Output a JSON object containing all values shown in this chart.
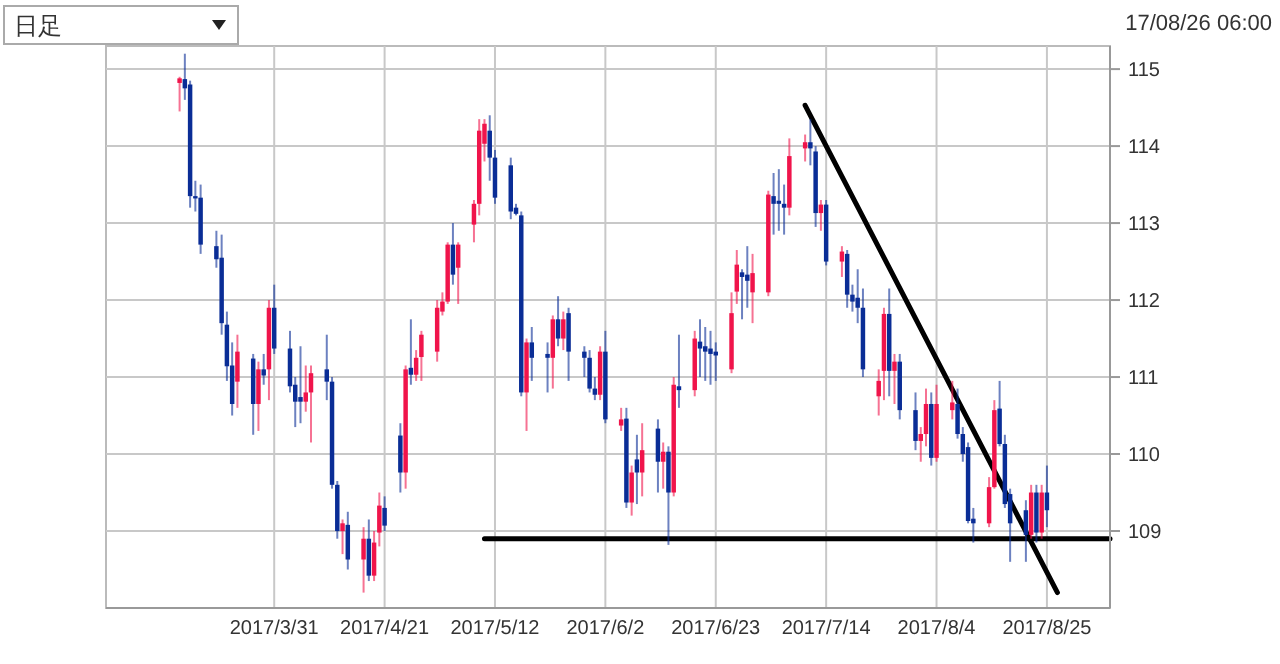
{
  "chart_data": {
    "type": "candlestick",
    "annotations": [
      "日足",
      "17/08/26 06:00"
    ],
    "x": [
      "2017-03-13",
      "2017-03-14",
      "2017-03-15",
      "2017-03-16",
      "2017-03-17",
      "2017-03-20",
      "2017-03-21",
      "2017-03-22",
      "2017-03-23",
      "2017-03-24",
      "2017-03-27",
      "2017-03-28",
      "2017-03-29",
      "2017-03-30",
      "2017-03-31",
      "2017-04-03",
      "2017-04-04",
      "2017-04-05",
      "2017-04-06",
      "2017-04-07",
      "2017-04-10",
      "2017-04-11",
      "2017-04-12",
      "2017-04-13",
      "2017-04-14",
      "2017-04-17",
      "2017-04-18",
      "2017-04-19",
      "2017-04-20",
      "2017-04-21",
      "2017-04-24",
      "2017-04-25",
      "2017-04-26",
      "2017-04-27",
      "2017-04-28",
      "2017-05-01",
      "2017-05-02",
      "2017-05-03",
      "2017-05-04",
      "2017-05-05",
      "2017-05-08",
      "2017-05-09",
      "2017-05-10",
      "2017-05-11",
      "2017-05-12",
      "2017-05-15",
      "2017-05-16",
      "2017-05-17",
      "2017-05-18",
      "2017-05-19",
      "2017-05-22",
      "2017-05-23",
      "2017-05-24",
      "2017-05-25",
      "2017-05-26",
      "2017-05-29",
      "2017-05-30",
      "2017-05-31",
      "2017-06-01",
      "2017-06-02",
      "2017-06-05",
      "2017-06-06",
      "2017-06-07",
      "2017-06-08",
      "2017-06-09",
      "2017-06-12",
      "2017-06-13",
      "2017-06-14",
      "2017-06-15",
      "2017-06-16",
      "2017-06-19",
      "2017-06-20",
      "2017-06-21",
      "2017-06-22",
      "2017-06-23",
      "2017-06-26",
      "2017-06-27",
      "2017-06-28",
      "2017-06-29",
      "2017-06-30",
      "2017-07-03",
      "2017-07-04",
      "2017-07-05",
      "2017-07-06",
      "2017-07-07",
      "2017-07-10",
      "2017-07-11",
      "2017-07-12",
      "2017-07-13",
      "2017-07-14",
      "2017-07-17",
      "2017-07-18",
      "2017-07-19",
      "2017-07-20",
      "2017-07-21",
      "2017-07-24",
      "2017-07-25",
      "2017-07-26",
      "2017-07-27",
      "2017-07-28",
      "2017-07-31",
      "2017-08-01",
      "2017-08-02",
      "2017-08-03",
      "2017-08-04",
      "2017-08-07",
      "2017-08-08",
      "2017-08-09",
      "2017-08-10",
      "2017-08-11",
      "2017-08-14",
      "2017-08-15",
      "2017-08-16",
      "2017-08-17",
      "2017-08-18",
      "2017-08-21",
      "2017-08-22",
      "2017-08-23",
      "2017-08-24",
      "2017-08-25"
    ],
    "ohlc": [
      [
        114.82,
        114.9,
        114.45,
        114.88
      ],
      [
        114.87,
        115.2,
        114.6,
        114.75
      ],
      [
        114.8,
        114.85,
        113.2,
        113.35
      ],
      [
        113.35,
        113.55,
        113.15,
        113.32
      ],
      [
        113.33,
        113.5,
        112.6,
        112.72
      ],
      [
        112.7,
        112.9,
        112.42,
        112.53
      ],
      [
        112.55,
        112.85,
        111.55,
        111.7
      ],
      [
        111.68,
        111.85,
        110.95,
        111.14
      ],
      [
        111.15,
        111.45,
        110.5,
        110.65
      ],
      [
        110.94,
        111.55,
        110.6,
        111.33
      ],
      [
        111.24,
        111.3,
        110.25,
        110.65
      ],
      [
        110.65,
        111.2,
        110.3,
        111.1
      ],
      [
        111.1,
        111.3,
        110.9,
        111.02
      ],
      [
        111.1,
        112.0,
        110.7,
        111.9
      ],
      [
        111.9,
        112.2,
        111.3,
        111.37
      ],
      [
        111.37,
        111.6,
        110.8,
        110.88
      ],
      [
        110.9,
        111.0,
        110.35,
        110.68
      ],
      [
        110.74,
        111.4,
        110.4,
        110.68
      ],
      [
        110.68,
        111.15,
        110.55,
        110.8
      ],
      [
        110.8,
        111.15,
        110.15,
        111.05
      ],
      [
        111.1,
        111.55,
        110.7,
        110.94
      ],
      [
        110.94,
        111.0,
        109.55,
        109.6
      ],
      [
        109.6,
        109.65,
        108.9,
        109.0
      ],
      [
        109.0,
        109.15,
        108.7,
        109.1
      ],
      [
        109.08,
        109.25,
        108.5,
        108.63
      ],
      [
        108.63,
        109.05,
        108.2,
        108.9
      ],
      [
        108.9,
        109.15,
        108.35,
        108.42
      ],
      [
        108.42,
        109.0,
        108.35,
        108.85
      ],
      [
        108.98,
        109.5,
        108.8,
        109.33
      ],
      [
        109.3,
        109.45,
        109.0,
        109.07
      ],
      [
        110.24,
        110.4,
        109.5,
        109.76
      ],
      [
        109.76,
        111.15,
        109.55,
        111.1
      ],
      [
        111.12,
        111.75,
        110.9,
        111.03
      ],
      [
        111.03,
        111.35,
        110.95,
        111.25
      ],
      [
        111.26,
        111.6,
        110.95,
        111.55
      ],
      [
        111.33,
        112.0,
        111.2,
        111.9
      ],
      [
        111.85,
        112.1,
        111.8,
        111.98
      ],
      [
        111.98,
        112.75,
        111.95,
        112.72
      ],
      [
        112.72,
        113.0,
        112.2,
        112.33
      ],
      [
        112.42,
        112.75,
        111.95,
        112.72
      ],
      [
        112.98,
        113.3,
        112.75,
        113.25
      ],
      [
        113.25,
        114.35,
        113.1,
        114.2
      ],
      [
        114.03,
        114.35,
        113.8,
        114.29
      ],
      [
        114.2,
        114.4,
        113.55,
        113.85
      ],
      [
        113.85,
        113.95,
        113.25,
        113.33
      ],
      [
        113.75,
        113.85,
        113.05,
        113.15
      ],
      [
        113.2,
        113.25,
        113.1,
        113.12
      ],
      [
        113.1,
        113.15,
        110.75,
        110.8
      ],
      [
        110.8,
        111.5,
        110.3,
        111.45
      ],
      [
        111.45,
        111.65,
        110.95,
        111.25
      ],
      [
        111.3,
        111.45,
        110.8,
        111.25
      ],
      [
        111.25,
        111.8,
        110.85,
        111.75
      ],
      [
        111.75,
        112.05,
        111.4,
        111.5
      ],
      [
        111.5,
        111.85,
        111.35,
        111.75
      ],
      [
        111.83,
        111.9,
        110.95,
        111.33
      ],
      [
        111.33,
        111.4,
        111.0,
        111.25
      ],
      [
        111.25,
        111.35,
        110.8,
        110.85
      ],
      [
        110.85,
        111.0,
        110.7,
        110.77
      ],
      [
        110.77,
        111.4,
        110.7,
        111.33
      ],
      [
        111.33,
        111.6,
        110.4,
        110.45
      ],
      [
        110.37,
        110.6,
        110.3,
        110.45
      ],
      [
        110.46,
        110.6,
        109.3,
        109.37
      ],
      [
        109.37,
        109.85,
        109.2,
        109.76
      ],
      [
        109.93,
        110.25,
        109.35,
        109.76
      ],
      [
        109.76,
        110.4,
        109.45,
        110.05
      ],
      [
        110.33,
        110.45,
        109.5,
        109.9
      ],
      [
        109.9,
        110.15,
        109.55,
        110.03
      ],
      [
        110.03,
        110.1,
        108.82,
        109.5
      ],
      [
        109.5,
        111.0,
        109.45,
        110.9
      ],
      [
        110.88,
        111.55,
        110.6,
        110.83
      ],
      [
        110.83,
        111.6,
        110.75,
        111.5
      ],
      [
        111.46,
        111.75,
        111.0,
        111.37
      ],
      [
        111.4,
        111.65,
        110.95,
        111.33
      ],
      [
        111.37,
        111.6,
        110.9,
        111.3
      ],
      [
        111.33,
        111.45,
        110.95,
        111.28
      ],
      [
        111.1,
        112.1,
        111.05,
        111.83
      ],
      [
        112.11,
        112.65,
        111.95,
        112.46
      ],
      [
        112.36,
        112.4,
        111.75,
        112.3
      ],
      [
        112.33,
        112.7,
        111.9,
        112.25
      ],
      [
        112.1,
        112.6,
        111.7,
        112.35
      ],
      [
        112.1,
        113.42,
        112.05,
        113.37
      ],
      [
        113.35,
        113.65,
        112.85,
        113.25
      ],
      [
        113.29,
        113.7,
        112.9,
        113.25
      ],
      [
        113.25,
        113.5,
        112.85,
        113.2
      ],
      [
        113.2,
        114.1,
        113.1,
        113.87
      ],
      [
        113.97,
        114.15,
        113.8,
        114.05
      ],
      [
        114.05,
        114.35,
        113.75,
        113.97
      ],
      [
        113.93,
        114.0,
        112.95,
        113.13
      ],
      [
        113.13,
        113.3,
        112.9,
        113.24
      ],
      [
        113.24,
        113.3,
        112.45,
        112.5
      ],
      [
        112.5,
        112.7,
        112.3,
        112.63
      ],
      [
        112.6,
        112.65,
        111.9,
        112.07
      ],
      [
        112.07,
        112.2,
        111.85,
        111.98
      ],
      [
        112.03,
        112.4,
        111.7,
        111.9
      ],
      [
        111.9,
        112.15,
        111.0,
        111.1
      ],
      [
        110.75,
        111.1,
        110.5,
        110.95
      ],
      [
        111.08,
        111.9,
        110.7,
        111.82
      ],
      [
        111.82,
        112.15,
        110.75,
        111.08
      ],
      [
        111.08,
        111.3,
        110.65,
        111.2
      ],
      [
        111.2,
        111.3,
        110.45,
        110.57
      ],
      [
        110.57,
        110.8,
        110.05,
        110.17
      ],
      [
        110.17,
        110.35,
        109.9,
        110.26
      ],
      [
        110.26,
        110.85,
        110.1,
        110.65
      ],
      [
        110.65,
        110.8,
        109.85,
        109.95
      ],
      [
        109.95,
        110.9,
        109.9,
        110.65
      ],
      [
        110.57,
        110.95,
        110.45,
        110.67
      ],
      [
        110.65,
        110.85,
        110.2,
        110.26
      ],
      [
        110.26,
        110.35,
        109.9,
        110.0
      ],
      [
        110.09,
        110.15,
        109.1,
        109.13
      ],
      [
        109.16,
        109.3,
        108.85,
        109.1
      ],
      [
        109.1,
        109.7,
        109.05,
        109.57
      ],
      [
        109.57,
        110.7,
        109.55,
        110.57
      ],
      [
        110.59,
        110.95,
        110.1,
        110.13
      ],
      [
        110.13,
        110.25,
        109.3,
        109.35
      ],
      [
        109.48,
        109.55,
        108.6,
        109.1
      ],
      [
        109.27,
        109.4,
        108.6,
        108.95
      ],
      [
        108.95,
        109.6,
        108.9,
        109.5
      ],
      [
        109.5,
        109.6,
        108.85,
        108.98
      ],
      [
        108.98,
        109.6,
        108.9,
        109.5
      ],
      [
        109.5,
        109.85,
        109.05,
        109.27
      ]
    ],
    "colors": [
      "#f0144b",
      "#0a2d96",
      "#0a2d96",
      "#0a2d96",
      "#0a2d96",
      "#0a2d96",
      "#0a2d96",
      "#0a2d96",
      "#0a2d96",
      "#f0144b",
      "#0a2d96",
      "#f0144b",
      "#0a2d96",
      "#f0144b",
      "#0a2d96",
      "#0a2d96",
      "#0a2d96",
      "#0a2d96",
      "#f0144b",
      "#f0144b",
      "#0a2d96",
      "#0a2d96",
      "#0a2d96",
      "#f0144b",
      "#0a2d96",
      "#f0144b",
      "#0a2d96",
      "#f0144b",
      "#f0144b",
      "#0a2d96",
      "#0a2d96",
      "#f0144b",
      "#0a2d96",
      "#f0144b",
      "#f0144b",
      "#f0144b",
      "#f0144b",
      "#f0144b",
      "#0a2d96",
      "#f0144b",
      "#f0144b",
      "#f0144b",
      "#f0144b",
      "#0a2d96",
      "#0a2d96",
      "#0a2d96",
      "#0a2d96",
      "#0a2d96",
      "#f0144b",
      "#0a2d96",
      "#0a2d96",
      "#f0144b",
      "#0a2d96",
      "#f0144b",
      "#0a2d96",
      "#0a2d96",
      "#0a2d96",
      "#0a2d96",
      "#f0144b",
      "#0a2d96",
      "#f0144b",
      "#0a2d96",
      "#f0144b",
      "#0a2d96",
      "#f0144b",
      "#0a2d96",
      "#f0144b",
      "#0a2d96",
      "#f0144b",
      "#0a2d96",
      "#f0144b",
      "#0a2d96",
      "#0a2d96",
      "#0a2d96",
      "#0a2d96",
      "#f0144b",
      "#f0144b",
      "#0a2d96",
      "#0a2d96",
      "#f0144b",
      "#f0144b",
      "#0a2d96",
      "#0a2d96",
      "#0a2d96",
      "#f0144b",
      "#f0144b",
      "#0a2d96",
      "#0a2d96",
      "#f0144b",
      "#0a2d96",
      "#f0144b",
      "#0a2d96",
      "#0a2d96",
      "#0a2d96",
      "#0a2d96",
      "#f0144b",
      "#f0144b",
      "#0a2d96",
      "#f0144b",
      "#0a2d96",
      "#0a2d96",
      "#f0144b",
      "#f0144b",
      "#0a2d96",
      "#f0144b",
      "#f0144b",
      "#0a2d96",
      "#0a2d96",
      "#0a2d96",
      "#0a2d96",
      "#f0144b",
      "#f0144b",
      "#0a2d96",
      "#0a2d96",
      "#0a2d96",
      "#0a2d96",
      "#f0144b",
      "#0a2d96",
      "#f0144b",
      "#0a2d96"
    ],
    "series": [
      {
        "type": "line",
        "color": "#000000",
        "x": [
          "2017-07-10",
          "2017-08-27"
        ],
        "values": [
          114.53,
          108.2
        ]
      },
      {
        "type": "line",
        "color": "#000000",
        "x": [
          "2017-05-10",
          "2017-09-06"
        ],
        "values": [
          108.9,
          108.9
        ]
      }
    ],
    "xlim": [
      "2017-02-27",
      "2017-09-06"
    ],
    "xticks": [
      {
        "value": "2017-03-31",
        "label": "2017/3/31"
      },
      {
        "value": "2017-04-21",
        "label": "2017/4/21"
      },
      {
        "value": "2017-05-12",
        "label": "2017/5/12"
      },
      {
        "value": "2017-06-02",
        "label": "2017/6/2"
      },
      {
        "value": "2017-06-23",
        "label": "2017/6/23"
      },
      {
        "value": "2017-07-14",
        "label": "2017/7/14"
      },
      {
        "value": "2017-08-04",
        "label": "2017/8/4"
      },
      {
        "value": "2017-08-25",
        "label": "2017/8/25"
      }
    ],
    "ylim": [
      108,
      115.3
    ],
    "yticks": [
      109,
      110,
      111,
      112,
      113,
      114,
      115
    ],
    "grid": true
  }
}
